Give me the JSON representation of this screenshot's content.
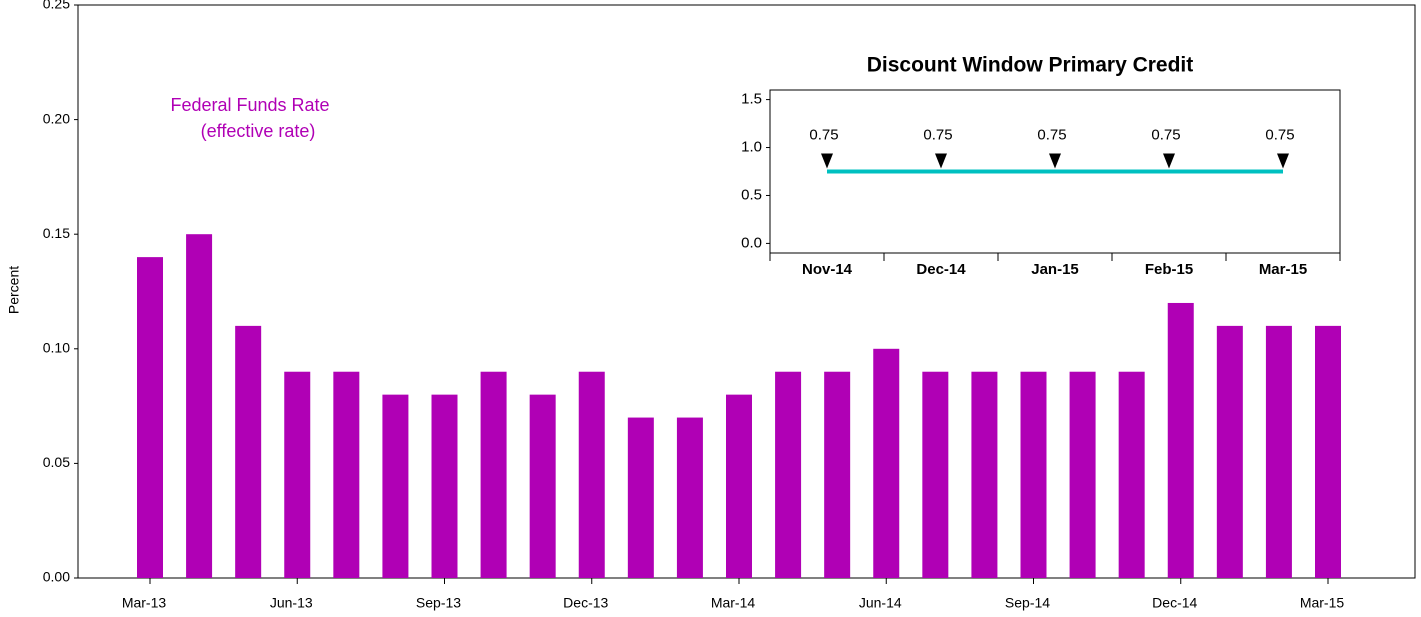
{
  "chart_data": [
    {
      "type": "bar",
      "y_label": "Percent",
      "annotation": [
        "Federal Funds Rate",
        "(effective rate)"
      ],
      "categories": [
        "Mar-13",
        null,
        null,
        "Jun-13",
        null,
        null,
        "Sep-13",
        null,
        null,
        "Dec-13",
        null,
        null,
        "Mar-14",
        null,
        null,
        "Jun-14",
        null,
        null,
        "Sep-14",
        null,
        null,
        "Dec-14",
        null,
        null,
        "Mar-15"
      ],
      "values": [
        0.14,
        0.15,
        0.11,
        0.09,
        0.09,
        0.08,
        0.08,
        0.09,
        0.08,
        0.09,
        0.07,
        0.07,
        0.08,
        0.09,
        0.09,
        0.1,
        0.09,
        0.09,
        0.09,
        0.09,
        0.09,
        0.12,
        0.11,
        0.11,
        0.11
      ],
      "color": "#b000b5",
      "ylim": [
        0,
        0.25
      ],
      "yticks": [
        {
          "value": 0,
          "label": "0.00"
        },
        0.05,
        {
          "value": 0.1,
          "label": "0.10"
        },
        0.15,
        {
          "value": 0.2,
          "label": "0.20"
        },
        0.25
      ]
    },
    {
      "type": "line",
      "title": "Discount Window Primary Credit",
      "categories": [
        "Nov-14",
        "Dec-14",
        "Jan-15",
        "Feb-15",
        "Mar-15"
      ],
      "values": [
        0.75,
        0.75,
        0.75,
        0.75,
        0.75
      ],
      "color": "#00c0c0",
      "ylim": [
        -0.1,
        1.6
      ],
      "yticks": [
        {
          "value": 0,
          "label": "0.0"
        },
        0.5,
        {
          "value": 1,
          "label": "1.0"
        },
        1.5
      ]
    }
  ]
}
